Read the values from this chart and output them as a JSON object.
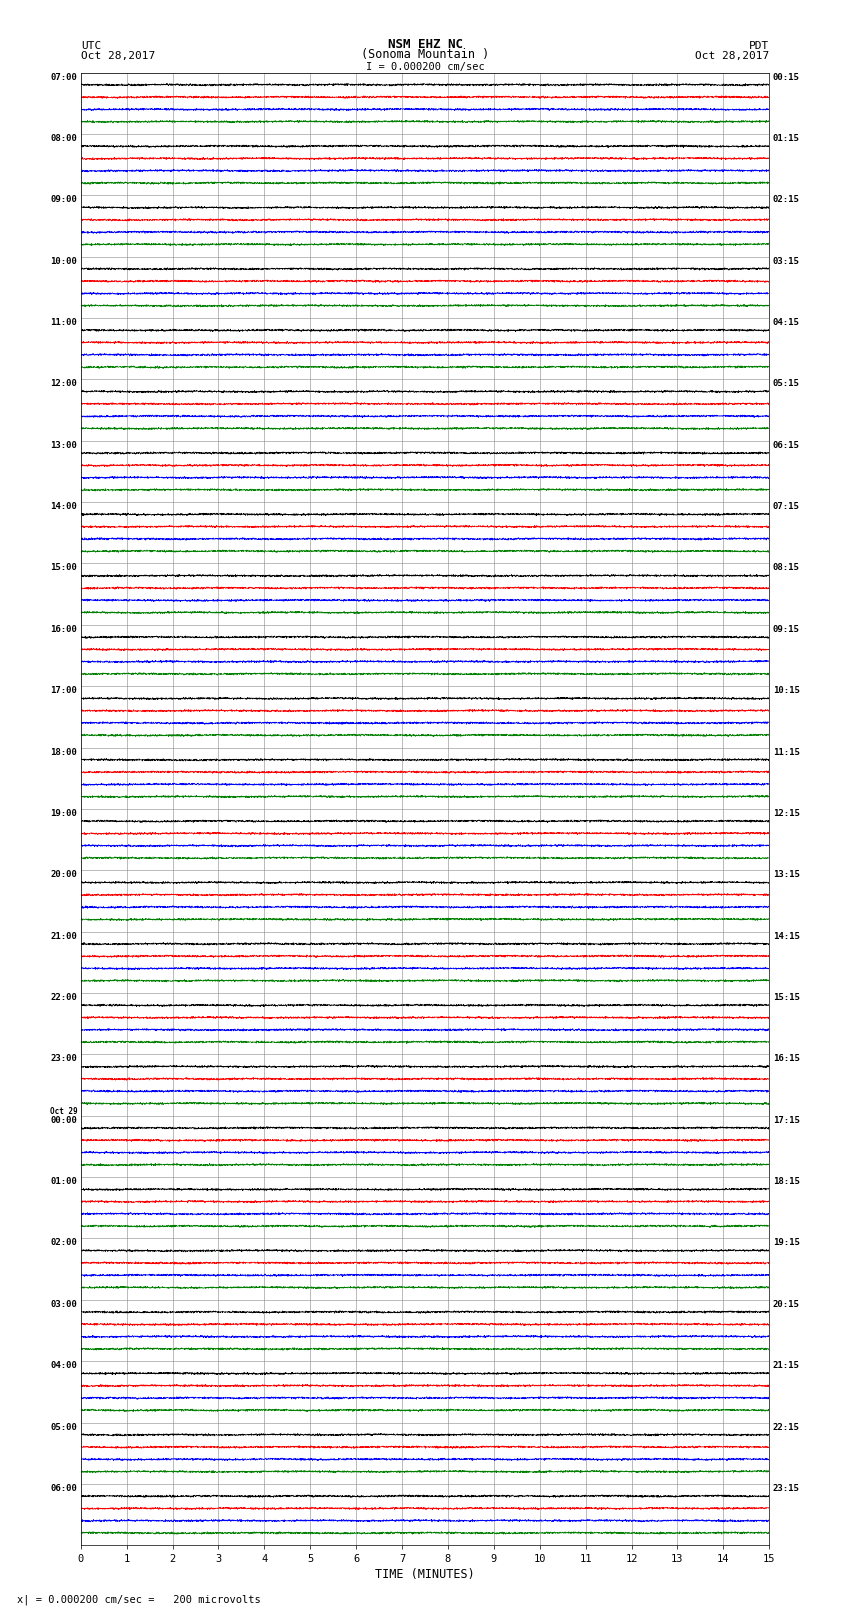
{
  "title_line1": "NSM EHZ NC",
  "title_line2": "(Sonoma Mountain )",
  "title_line3": "I = 0.000200 cm/sec",
  "left_label_line1": "UTC",
  "left_label_line2": "Oct 28,2017",
  "right_label_line1": "PDT",
  "right_label_line2": "Oct 28,2017",
  "xlabel": "TIME (MINUTES)",
  "bottom_note": "x| = 0.000200 cm/sec =   200 microvolts",
  "num_rows": 24,
  "row_labels_left": [
    "07:00",
    "08:00",
    "09:00",
    "10:00",
    "11:00",
    "12:00",
    "13:00",
    "14:00",
    "15:00",
    "16:00",
    "17:00",
    "18:00",
    "19:00",
    "20:00",
    "21:00",
    "22:00",
    "23:00",
    "Oct 29\n00:00",
    "01:00",
    "02:00",
    "03:00",
    "04:00",
    "05:00",
    "06:00"
  ],
  "row_labels_right": [
    "00:15",
    "01:15",
    "02:15",
    "03:15",
    "04:15",
    "05:15",
    "06:15",
    "07:15",
    "08:15",
    "09:15",
    "10:15",
    "11:15",
    "12:15",
    "13:15",
    "14:15",
    "15:15",
    "16:15",
    "17:15",
    "18:15",
    "19:15",
    "20:15",
    "21:15",
    "22:15",
    "23:15"
  ],
  "trace_colors": [
    "black",
    "red",
    "blue",
    "green"
  ],
  "background_color": "white",
  "grid_color": "#888888",
  "xmin": 0,
  "xmax": 15,
  "xticks": [
    0,
    1,
    2,
    3,
    4,
    5,
    6,
    7,
    8,
    9,
    10,
    11,
    12,
    13,
    14,
    15
  ],
  "noise_amplitude": 0.025,
  "seed": 42
}
